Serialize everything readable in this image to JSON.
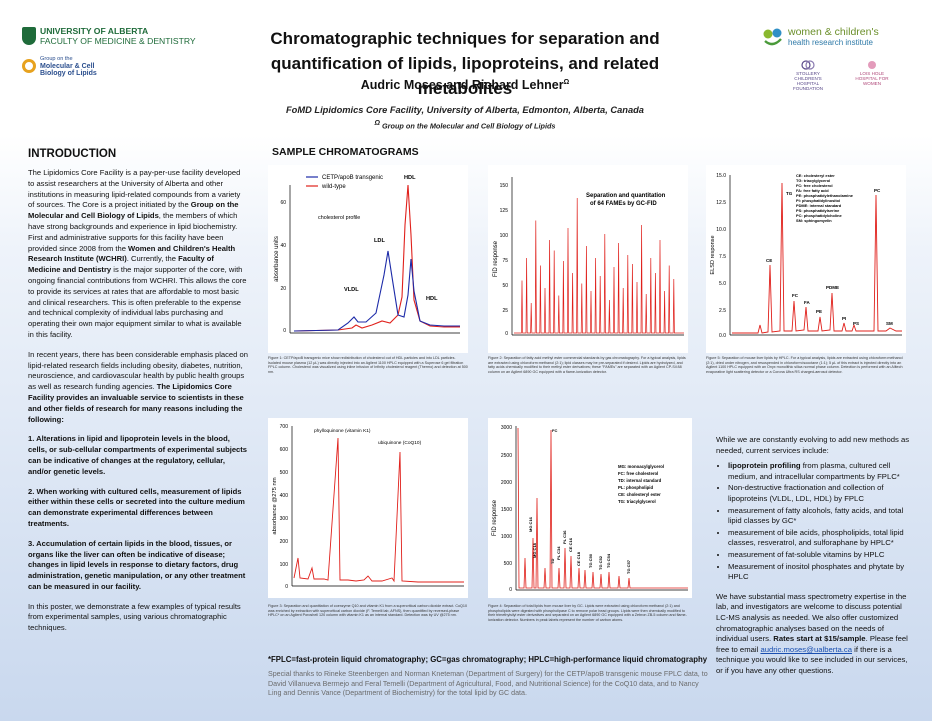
{
  "header": {
    "ua_line1": "UNIVERSITY OF ALBERTA",
    "ua_line2": "FACULTY OF MEDICINE & DENTISTRY",
    "mcb_line1": "Group on the",
    "mcb_line2": "Molecular & Cell",
    "mcb_line3": "Biology of Lipids",
    "title_line1": "Chromatographic techniques for separation and",
    "title_line2": "quantification of lipids, lipoproteins, and related metabolites",
    "authors": "Audric Moses and Richard Lehner",
    "authors_sup": "Ω",
    "affiliation": "FoMD Lipidomics Core Facility, University of Alberta, Edmonton, Alberta, Canada",
    "affiliation2_sup": "Ω",
    "affiliation2": "Group on the Molecular and Cell Biology of Lipids",
    "wchri_line1": "women & children's",
    "wchri_line2": "health research institute",
    "partner1": "STOLLERY CHILDREN'S HOSPITAL FOUNDATION",
    "partner2": "LOIS HOLE HOSPITAL FOR WOMEN"
  },
  "introduction": {
    "heading": "INTRODUCTION",
    "p1_a": "The Lipidomics Core Facility is a pay-per-use facility developed to assist researchers at the University of Alberta and other institutions in measuring lipid-related compounds from a variety of sources. The Core is a project initiated by the ",
    "p1_b": "Group on the Molecular and Cell Biology of Lipids",
    "p1_c": ", the members of which have strong backgrounds and experience in lipid biochemistry. First and administrative supports for this facility have been provided since 2008 from the ",
    "p1_d": "Women and Children's Health Research Institute (WCHRI)",
    "p1_e": ". Currently, the ",
    "p1_f": "Faculty of Medicine and Dentistry",
    "p1_g": " is the major supporter of the core, with ongoing financial contributions from WCHRI. This allows the core to provide its services at rates that are affordable to most basic and clinical researchers. This is often preferable to the expense and technical complexity of individual labs purchasing and operating their own major equipment similar to what is available in this facility.",
    "p2_a": "In recent years, there has been considerable emphasis placed on lipid-related research fields including obesity, diabetes, nutrition, neuroscience, and cardiovascular health by public health groups as well as research funding agencies. ",
    "p2_b": "The Lipidomics Core Facility provides an invaluable service to scientists in these and other fields of research for many reasons including the following:",
    "p3": "1. Alterations in lipid and lipoprotein levels in the blood, cells, or sub-cellular compartments of experimental subjects can be indicative of changes at the regulatory, cellular, and/or genetic levels.",
    "p4": "2. When working with cultured cells, measurement of lipids either within these cells or secreted into the culture medium can demonstrate experimental differences between treatments.",
    "p5": "3. Accumulation of certain lipids in the blood, tissues, or organs like the liver can often be indicative of disease; changes in lipid levels in response to dietary factors, drug administration, genetic manipulation, or any other treatment can be measured in our facility.",
    "p6": "In this poster, we demonstrate a few examples of typical results from experimental samples, using various chromatographic techniques."
  },
  "samples": {
    "heading": "SAMPLE CHROMATOGRAMS",
    "fig1": {
      "legend_blue": "CETP/apoB transgenic",
      "legend_red": "wild-type",
      "ylabel": "absorbance units",
      "annotation": "cholesterol profile",
      "labels": [
        "HDL",
        "LDL",
        "VLDL",
        "HDL"
      ],
      "ticks": [
        "60",
        "40",
        "20",
        "0"
      ],
      "caption": "Figure 1: CETP/apoB transgenic mice show redistribution of cholesterol out of HDL particles and into LDL particles. Isolated mouse plasma (12 μL) was directly injected into an Agilent 1100 HPLC equipped with a Superose 6 gel filtration FPLC column. Cholesterol was visualized using inline infusion of Infinity cholesterol reagent (Thermo) and detection at 500 nm.",
      "chart_data": {
        "type": "line",
        "ylabel": "absorbance units",
        "ylim": [
          0,
          70
        ],
        "series": [
          {
            "name": "CETP/apoB transgenic",
            "peaks": [
              {
                "label": "VLDL",
                "y": 6
              },
              {
                "label": "LDL",
                "y": 34
              },
              {
                "label": "HDL",
                "y": 13
              }
            ]
          },
          {
            "name": "wild-type",
            "peaks": [
              {
                "label": "VLDL",
                "y": 2
              },
              {
                "label": "LDL",
                "y": 8
              },
              {
                "label": "HDL",
                "y": 63
              }
            ]
          }
        ]
      }
    },
    "fig2": {
      "title_line1": "Separation and quantitation",
      "title_line2": "of 64 FAMEs by GC-FID",
      "ylabel": "FID response",
      "ticks": [
        "150",
        "125",
        "100",
        "75",
        "50",
        "25",
        "0"
      ],
      "caption": "Figure 2: Separation of fatty acid methyl ester commercial standards by gas chromatography. For a typical analysis, lipids are extracted using chloroform:methanol (2:1); lipid classes may be pre-separated if desired. Lipids are hydrolyzed, and fatty acids chemically modified to their methyl ester derivatives; these \"FAMEs\" are separated with an Agilent CP-Sil 88 column on an Agilent 6890 GC equipped with a flame-ionization detector."
    },
    "fig3": {
      "legend": [
        "CE: cholesteryl ester",
        "TG: triacylglycerol",
        "FC: free cholesterol",
        "FA: free fatty acid",
        "PE: phosphatidylethanolamine",
        "PI: phosphatidylinositol",
        "PDME: internal standard",
        "PS: phosphatidylserine",
        "PC: phosphatidylcholine",
        "SM: sphingomyelin"
      ],
      "ylabel": "ELSD response",
      "ticks": [
        "15.0",
        "12.5",
        "10.0",
        "7.5",
        "5.0",
        "2.5",
        "0.0"
      ],
      "labels": [
        "TG",
        "CE",
        "FC",
        "FA",
        "PDME",
        "PC",
        "PI",
        "PS",
        "SM",
        "PE"
      ],
      "caption": "Figure 5: Separation of mouse liver lipids by HPLC. For a typical analysis, lipids are extracted using chloroform:methanol (2:1), dried under nitrogen, and resuspended in chloroform:isooctane (1:1); 5 μL of this extract is injected directly into an Agilent 1100 HPLC equipped with an Onyx monolithic silica normal phase column. Detection is performed with an Alltech evaporative light scattering detector or a Corona Ultra RS charged-aerosol detector."
    },
    "fig4": {
      "ylabel": "absorbance @275 nm",
      "label1": "phylloquinone (vitamin K1)",
      "label2": "ubiquinone (CoQ10)",
      "ticks": [
        "700",
        "600",
        "500",
        "400",
        "300",
        "200",
        "100",
        "0"
      ],
      "caption": "Figure 3: Separation and quantitation of coenzyme Q10 and vitamin K1 from a supercritical carbon dioxide extract. CoQ10 was enriched by extraction with supercritical carbon dioxide (F. Temelli lab, AFNS), then quantified by reversed-phase HPLC* on an Agilent Poroshell 120 column with vitamin K1 as an internal standard. Detection was by UV @275 nm."
    },
    "fig5": {
      "ylabel": "FID response",
      "legend": [
        "MG: monoacylglycerol",
        "FC: free cholesterol",
        "TD: internal standard",
        "PL: phospholipid",
        "CE: cholesteryl ester",
        "TG: triacylglycerol"
      ],
      "labels": [
        "FC",
        "MG C16",
        "MG C18",
        "TD",
        "PL C34",
        "PL C36",
        "CE C16",
        "CE C18",
        "TG C50",
        "TG C52",
        "TG C54",
        "TG C57"
      ],
      "ticks": [
        "3000",
        "2500",
        "2000",
        "1500",
        "1000",
        "500",
        "0"
      ],
      "caption": "Figure 4: Separation of total lipids from mouse liver by GC. Lipids were extracted using chloroform:methanol (2:1) and phospholipids were digested with phospholipase C to remove polar head groups. Lipids were then chemically modified to their trimethylsilyl ester derivatives and separated on an Agilent 6890 GC equipped with a Zebron ZB-5 column and flame-ionization detector. Numbers in peak labels represent the number of carbon atoms."
    }
  },
  "services": {
    "intro": "While we are constantly evolving to add new methods as needed, current services include:",
    "items": [
      {
        "b": "lipoprotein profiling",
        "t": " from plasma, cultured cell medium, and intracellular compartments by FPLC*"
      },
      {
        "b": "",
        "t": "Non-destructive fractionation and collection of lipoproteins (VLDL, LDL, HDL) by FPLC"
      },
      {
        "b": "",
        "t": "measurement of fatty alcohols, fatty acids, and total lipid classes by GC*"
      },
      {
        "b": "",
        "t": "measurement of bile acids, phospholipids, total lipid classes, resveratrol, and sulforaphane by HPLC*"
      },
      {
        "b": "",
        "t": "measurement of fat-soluble vitamins by HPLC"
      },
      {
        "b": "",
        "t": "Measurement of inositol phosphates and phytate by HPLC"
      }
    ],
    "closing_a": "We have substantial mass spectrometry expertise in the lab, and investigators are welcome to discuss potential LC-MS analysis as needed. We also offer customized chromatographic analyses based on the needs of individual users. ",
    "closing_b": "Rates start at $15/sample",
    "closing_c": ". Please feel free to email ",
    "email": "audric.moses@ualberta.ca",
    "closing_d": " if there is a technique you would like to see included in our services, or if you have any other questions."
  },
  "footer": {
    "abbrev": "*FPLC=fast-protein liquid chromatography; GC=gas chromatography; HPLC=high-performance liquid chromatography",
    "thanks": "Special thanks to Rineke Steenbergen and Norman Kneteman (Department of Surgery) for the CETP/apoB transgenic mouse FPLC data, to David Villanueva Bermejo and Feral Temelli (Department of Agricultural, Food, and Nutritional Science) for the CoQ10 data, and to Nancy Ling and Dennis Vance (Department of Biochemistry) for the total lipid by GC data."
  },
  "colors": {
    "ua_green": "#1f6b3a",
    "trace_blue": "#1c2aa8",
    "trace_red": "#e0201b",
    "link": "#1a4fb0"
  }
}
